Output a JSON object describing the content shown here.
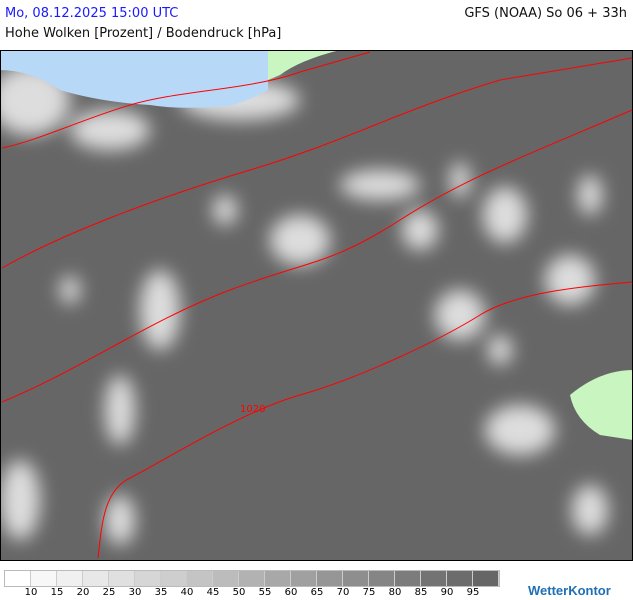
{
  "header": {
    "datetime": "Mo, 08.12.2025 15:00 UTC",
    "model": "GFS (NOAA) So 06 + 33h",
    "title": "Hohe Wolken [Prozent] / Bodendruck [hPa]"
  },
  "map": {
    "isobar_label": "1020",
    "colors": {
      "cloud_base": "#666666",
      "water": "#b8d8f8",
      "land_clear": "#c8f5c0",
      "isobar": "#ff0000"
    }
  },
  "legend": {
    "colors": [
      "#ffffff",
      "#f7f7f7",
      "#f0f0f0",
      "#e8e8e8",
      "#e0e0e0",
      "#d6d6d6",
      "#cecece",
      "#c4c4c4",
      "#bcbcbc",
      "#b2b2b2",
      "#a8a8a8",
      "#a0a0a0",
      "#969696",
      "#8e8e8e",
      "#858585",
      "#7c7c7c",
      "#737373",
      "#6c6c6c",
      "#666666"
    ],
    "labels": [
      "10",
      "15",
      "20",
      "25",
      "30",
      "35",
      "40",
      "45",
      "50",
      "55",
      "60",
      "65",
      "70",
      "75",
      "80",
      "85",
      "90",
      "95"
    ]
  },
  "logo": "WetterKontor"
}
